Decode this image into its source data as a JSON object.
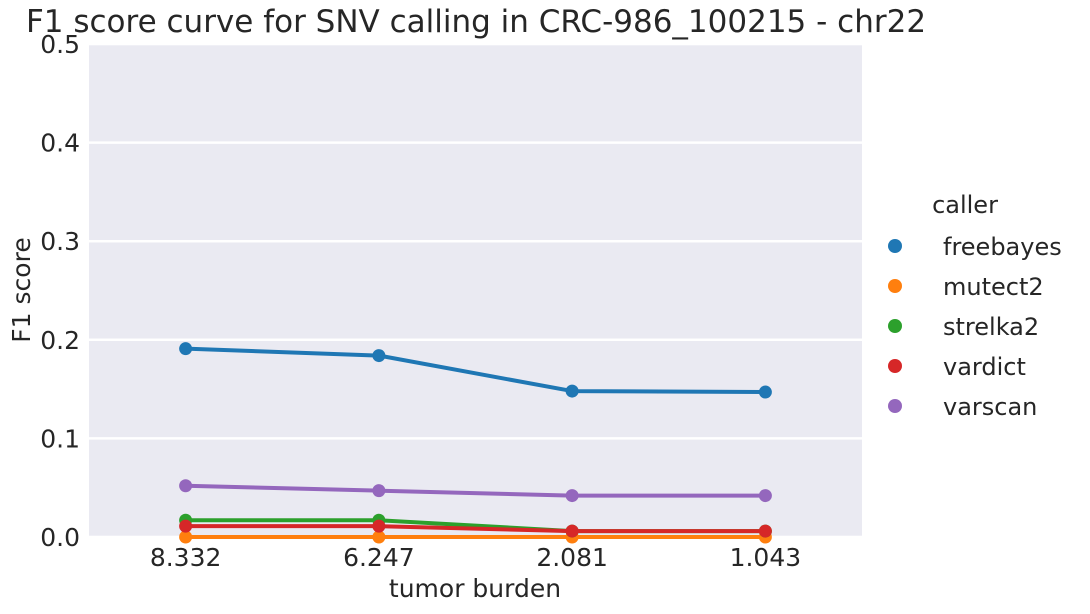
{
  "chart_data": {
    "type": "line",
    "title": "F1 score curve for SNV calling in CRC-986_100215 - chr22",
    "xlabel": "tumor burden",
    "ylabel": "F1 score",
    "categories": [
      "8.332",
      "6.247",
      "2.081",
      "1.043"
    ],
    "ylim": [
      0,
      0.5
    ],
    "yticks": [
      "0.0",
      "0.1",
      "0.2",
      "0.3",
      "0.4",
      "0.5"
    ],
    "ytick_values": [
      0,
      0.1,
      0.2,
      0.3,
      0.4,
      0.5
    ],
    "grid": true,
    "legend_title": "caller",
    "legend_position": "right",
    "series": [
      {
        "name": "freebayes",
        "color": "#1f77b4",
        "values": [
          0.191,
          0.184,
          0.148,
          0.147
        ]
      },
      {
        "name": "mutect2",
        "color": "#ff7f0e",
        "values": [
          0.0,
          0.0,
          0.0,
          0.0
        ]
      },
      {
        "name": "strelka2",
        "color": "#2ca02c",
        "values": [
          0.017,
          0.017,
          0.006,
          0.006
        ]
      },
      {
        "name": "vardict",
        "color": "#d62728",
        "values": [
          0.011,
          0.011,
          0.006,
          0.006
        ]
      },
      {
        "name": "varscan",
        "color": "#9467bd",
        "values": [
          0.052,
          0.047,
          0.042,
          0.042
        ]
      }
    ],
    "draw_order": [
      1,
      2,
      4,
      0,
      3
    ]
  }
}
